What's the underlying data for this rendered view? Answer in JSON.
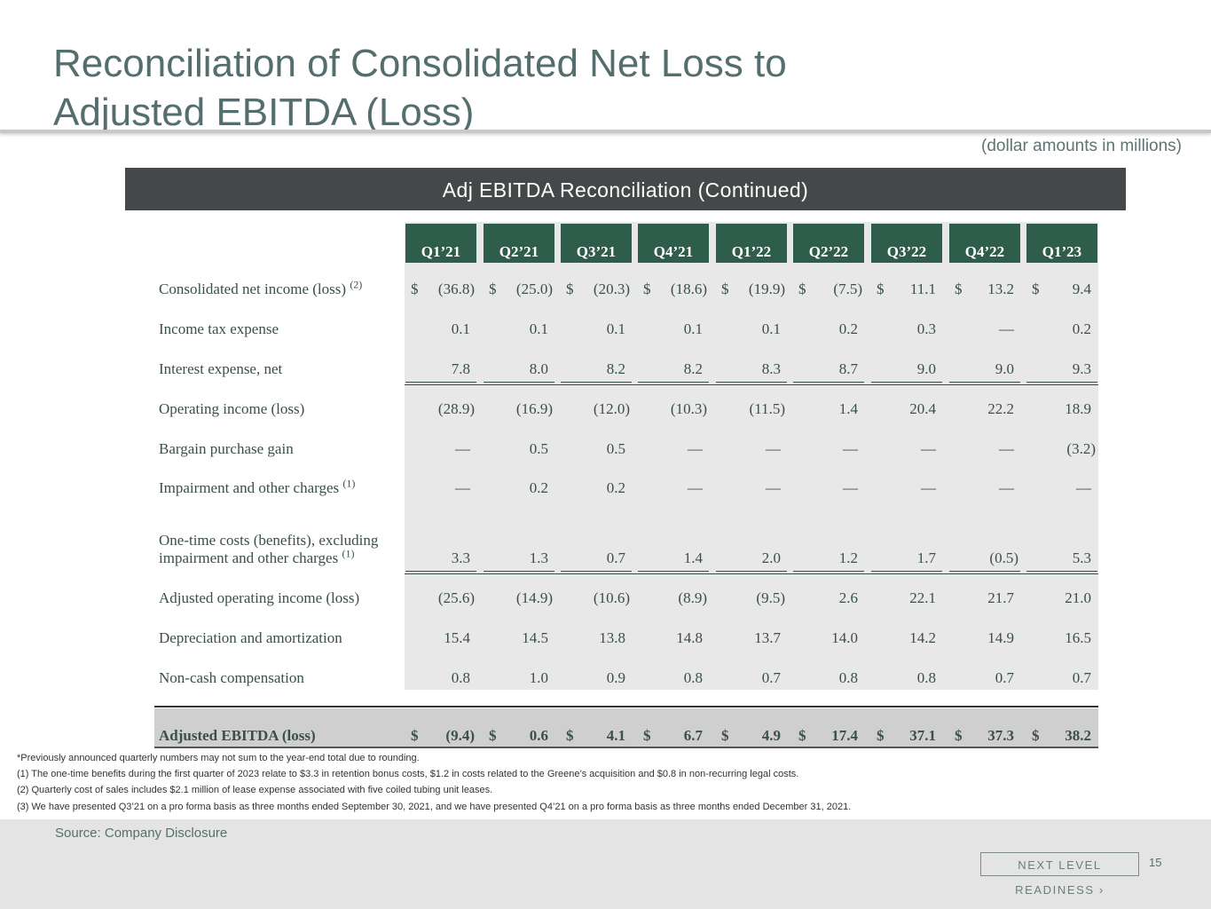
{
  "title_line1": "Reconciliation of Consolidated Net Loss to",
  "title_line2": "Adjusted EBITDA (Loss)",
  "units_note": "(dollar amounts in millions)",
  "banner": "Adj EBITDA Reconciliation (Continued)",
  "table": {
    "currency_symbol": "$",
    "headers": [
      "Q1’21",
      "Q2’21",
      "Q3’21",
      "Q4’21",
      "Q1’22",
      "Q2’22",
      "Q3’22",
      "Q4’22",
      "Q1’23"
    ],
    "rows": [
      {
        "label": "Consolidated net income (loss)",
        "note": "(2)",
        "values": [
          "(36.8)",
          "(25.0)",
          "(20.3)",
          "(18.6)",
          "(19.9)",
          "(7.5)",
          "11.1",
          "13.2",
          "9.4"
        ]
      },
      {
        "label": "Income tax expense",
        "note": "",
        "values": [
          "0.1",
          "0.1",
          "0.1",
          "0.1",
          "0.1",
          "0.2",
          "0.3",
          "—",
          "0.2"
        ]
      },
      {
        "label": "Interest expense, net",
        "note": "",
        "values": [
          "7.8",
          "8.0",
          "8.2",
          "8.2",
          "8.3",
          "8.7",
          "9.0",
          "9.0",
          "9.3"
        ]
      },
      {
        "label": "Operating income (loss)",
        "note": "",
        "values": [
          "(28.9)",
          "(16.9)",
          "(12.0)",
          "(10.3)",
          "(11.5)",
          "1.4",
          "20.4",
          "22.2",
          "18.9"
        ]
      },
      {
        "label": "Bargain purchase gain",
        "note": "",
        "values": [
          "—",
          "0.5",
          "0.5",
          "—",
          "—",
          "—",
          "—",
          "—",
          "(3.2)"
        ]
      },
      {
        "label": "Impairment and other charges",
        "note": "(1)",
        "values": [
          "—",
          "0.2",
          "0.2",
          "—",
          "—",
          "—",
          "—",
          "—",
          "—"
        ]
      },
      {
        "label_line1": "One-time costs (benefits), excluding",
        "label": "impairment and other charges",
        "note": "(1)",
        "values": [
          "3.3",
          "1.3",
          "0.7",
          "1.4",
          "2.0",
          "1.2",
          "1.7",
          "(0.5)",
          "5.3"
        ]
      },
      {
        "label": "Adjusted operating income (loss)",
        "note": "",
        "values": [
          "(25.6)",
          "(14.9)",
          "(10.6)",
          "(8.9)",
          "(9.5)",
          "2.6",
          "22.1",
          "21.7",
          "21.0"
        ]
      },
      {
        "label": "Depreciation and amortization",
        "note": "",
        "values": [
          "15.4",
          "14.5",
          "13.8",
          "14.8",
          "13.7",
          "14.0",
          "14.2",
          "14.9",
          "16.5"
        ]
      },
      {
        "label": "Non-cash compensation",
        "note": "",
        "values": [
          "0.8",
          "1.0",
          "0.9",
          "0.8",
          "0.7",
          "0.8",
          "0.8",
          "0.7",
          "0.7"
        ]
      },
      {
        "label": "Adjusted EBITDA (loss)",
        "note": "",
        "values": [
          "(9.4)",
          "0.6",
          "4.1",
          "6.7",
          "4.9",
          "17.4",
          "37.1",
          "37.3",
          "38.2"
        ]
      }
    ]
  },
  "footnotes": [
    "*Previously announced quarterly numbers may not sum to the year-end total due to rounding.",
    "(1) The one-time benefits during the first quarter of 2023 relate to $3.3 in retention bonus costs, $1.2 in costs related to the Greene’s acquisition and $0.8 in non-recurring legal costs.",
    "(2) Quarterly cost of sales includes $2.1 million of lease expense associated with five coiled tubing unit leases.",
    "(3) We have presented Q3’21 on a pro forma basis as three months ended September 30, 2021, and we have presented Q4’21 on a pro forma basis as three months ended December 31, 2021."
  ],
  "source": "Source: Company Disclosure",
  "brand_tag": "NEXT LEVEL READINESS ›",
  "page_number": "15"
}
